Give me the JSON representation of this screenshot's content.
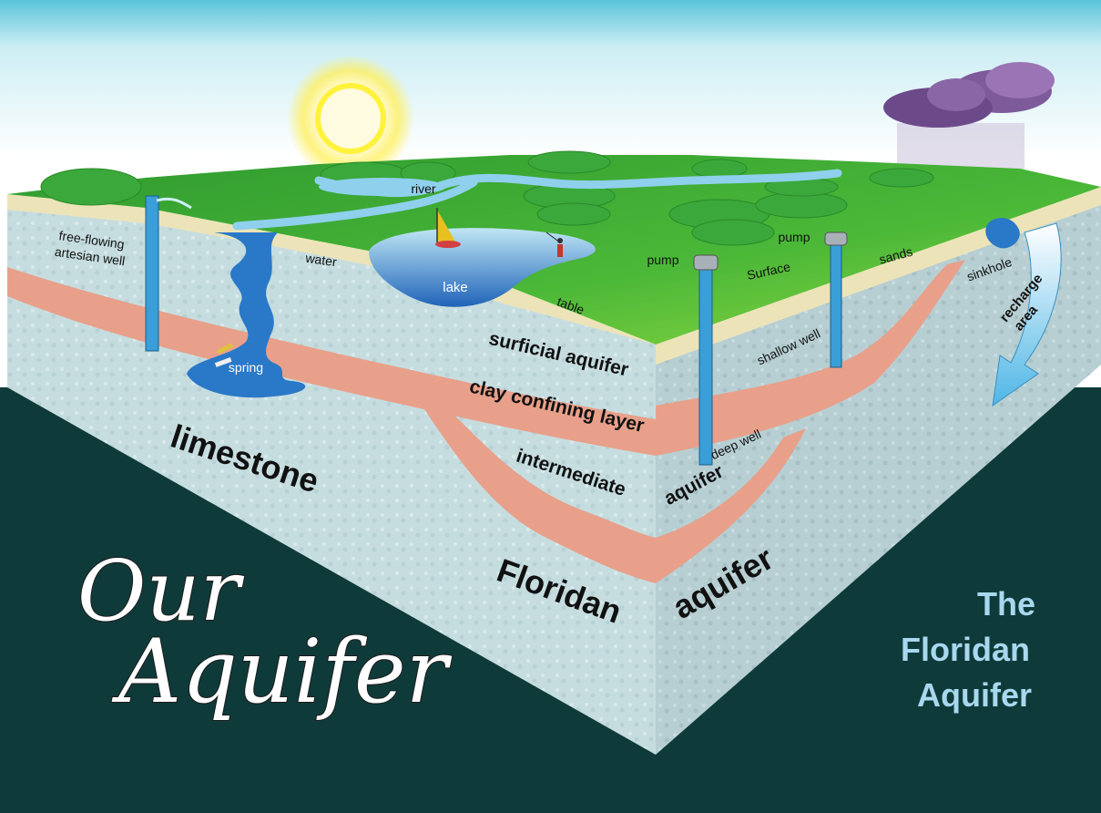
{
  "colors": {
    "sky_top": "#5ac4da",
    "background": "#0f3a3a",
    "grass": "#2f9a2f",
    "water": "#2a78c8",
    "clay": "#e8a08a",
    "limestone": "#c9dfe2",
    "sand": "#ece4b8",
    "title_light_blue": "#a8d8ee"
  },
  "icons": {
    "sun": "sun-icon",
    "rain_cloud": "rain-cloud-icon",
    "sailboat": "sailboat-icon",
    "fisherman": "fisherman-icon",
    "divers": "divers-icon",
    "pump": "pump-icon"
  },
  "labels": {
    "free_flowing_1": "free-flowing",
    "free_flowing_2": "artesian well",
    "spring": "spring",
    "water": "water",
    "river": "river",
    "lake": "lake",
    "table": "table",
    "pump_left": "pump",
    "pump_right": "pump",
    "surface": "Surface",
    "sands": "sands",
    "sinkhole": "sinkhole",
    "recharge_1": "recharge",
    "recharge_2": "area",
    "surficial_aquifer": "surficial aquifer",
    "clay_confining_layer": "clay confining layer",
    "intermediate": "intermediate",
    "shallow_well": "shallow well",
    "deep_well": "deep well",
    "aquifer_mid": "aquifer",
    "limestone": "limestone",
    "floridan": "Floridan",
    "aquifer_big": "aquifer"
  },
  "title": {
    "line1": "Our",
    "line2": "Aquifer"
  },
  "side_title": {
    "line1": "The",
    "line2": "Floridan",
    "line3": "Aquifer"
  }
}
